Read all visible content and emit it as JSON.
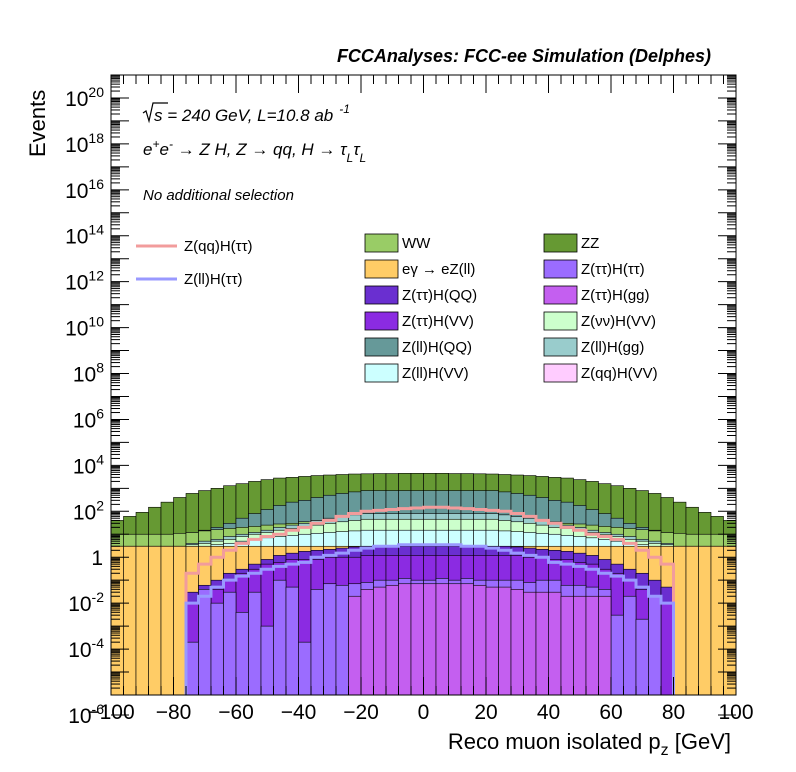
{
  "header": {
    "title": "FCCAnalyses: FCC-ee Simulation (Delphes)"
  },
  "labels": {
    "energy_sqrt": "s",
    "energy_rest": " = 240 GeV, L=10.8 ab",
    "energy_exp": "-1",
    "process_a": "e",
    "process_a_sup": "+",
    "process_b": "e",
    "process_b_sup": "-",
    "process_c": " → Z H, Z  → qq, H  → τ",
    "process_c_sub": "L",
    "process_d": "τ",
    "process_d_sub": "L",
    "selection": "No additional selection"
  },
  "chart_data": {
    "type": "area",
    "title": "FCCAnalyses: FCC-ee Simulation (Delphes)",
    "xlabel_main": "Reco muon isolated p",
    "xlabel_sub": "z",
    "xlabel_unit": " [GeV]",
    "ylabel": "Events",
    "xlim": [
      -100,
      100
    ],
    "ylim": [
      1e-06,
      1e+21
    ],
    "log_y": true,
    "grid": false,
    "legend_position": "top-right",
    "x_ticks": [
      "−100",
      "−80",
      "−60",
      "−40",
      "−20",
      "0",
      "20",
      "40",
      "60",
      "80",
      "100"
    ],
    "y_ticks": [
      {
        "base": "10",
        "exp": "-6",
        "value": 1e-06
      },
      {
        "base": "10",
        "exp": "-4",
        "value": 0.0001
      },
      {
        "base": "10",
        "exp": "-2",
        "value": 0.01
      },
      {
        "base": "1",
        "exp": "",
        "value": 1
      },
      {
        "base": "10",
        "exp": "2",
        "value": 100.0
      },
      {
        "base": "10",
        "exp": "4",
        "value": 10000.0
      },
      {
        "base": "10",
        "exp": "6",
        "value": 1000000.0
      },
      {
        "base": "10",
        "exp": "8",
        "value": 100000000.0
      },
      {
        "base": "10",
        "exp": "10",
        "value": 10000000000.0
      },
      {
        "base": "10",
        "exp": "12",
        "value": 1000000000000.0
      },
      {
        "base": "10",
        "exp": "14",
        "value": 100000000000000.0
      },
      {
        "base": "10",
        "exp": "16",
        "value": 1e+16
      },
      {
        "base": "10",
        "exp": "18",
        "value": 1e+18
      },
      {
        "base": "10",
        "exp": "20",
        "value": 1e+20
      }
    ],
    "bin_edges": [
      -100,
      -96,
      -92,
      -88,
      -84,
      -80,
      -76,
      -72,
      -68,
      -64,
      -60,
      -56,
      -52,
      -48,
      -44,
      -40,
      -36,
      -32,
      -28,
      -24,
      -20,
      -16,
      -12,
      -8,
      -4,
      0,
      4,
      8,
      12,
      16,
      20,
      24,
      28,
      32,
      36,
      40,
      44,
      48,
      52,
      56,
      60,
      64,
      68,
      72,
      76,
      80,
      84,
      88,
      92,
      96,
      100
    ],
    "stack_layers": [
      {
        "name": "Z(ττ)H(gg)",
        "color": "#c45ff0",
        "tops": [
          0,
          0,
          0,
          0,
          0,
          0,
          0,
          0,
          0,
          0,
          0,
          0,
          0,
          0,
          0,
          0,
          0,
          0,
          0,
          0.02,
          0.04,
          0.05,
          0.06,
          0.07,
          0.07,
          0.07,
          0.07,
          0.07,
          0.07,
          0.06,
          0.05,
          0.05,
          0.04,
          0.03,
          0.03,
          0.03,
          0.02,
          0.02,
          0.02,
          0.02,
          0,
          0,
          0,
          0,
          0,
          0,
          0,
          0,
          0,
          0
        ]
      },
      {
        "name": "Z(ττ)H(ττ)",
        "color": "#9b6cff",
        "tops": [
          0,
          0,
          0,
          0,
          0,
          0,
          0.0002,
          0.04,
          0.01,
          0.03,
          0.004,
          0.03,
          0.001,
          0.1,
          0.05,
          0.0002,
          0.04,
          0.07,
          0.06,
          0.07,
          0.08,
          0.1,
          0.1,
          0.12,
          0.1,
          0.1,
          0.12,
          0.1,
          0.12,
          0.1,
          0.1,
          0.1,
          0.1,
          0.08,
          0.1,
          0.1,
          0.06,
          0.06,
          0.05,
          0.04,
          0.003,
          0.02,
          0.002,
          0.02,
          0,
          0,
          0,
          0,
          0,
          0
        ]
      },
      {
        "name": "Z(ττ)H(VV)",
        "color": "#8b2be2",
        "tops": [
          0,
          0,
          0,
          0,
          0,
          0,
          0.01,
          0.02,
          0.04,
          0.1,
          0.2,
          0.3,
          0.5,
          0.6,
          0.8,
          0.8,
          0.8,
          1,
          1,
          1,
          1.2,
          1.2,
          1.2,
          1.2,
          1.2,
          1.2,
          1.2,
          1.2,
          1.2,
          1.2,
          1.2,
          1.2,
          1.2,
          1,
          1,
          0.8,
          0.8,
          0.6,
          0.5,
          0.3,
          0.2,
          0.1,
          0.04,
          0.02,
          0.01,
          0,
          0,
          0,
          0,
          0
        ]
      },
      {
        "name": "Z(ττ)H(QQ)",
        "color": "#6a2fd0",
        "tops": [
          0,
          0,
          0,
          0,
          0,
          0,
          0.03,
          0.06,
          0.1,
          0.2,
          0.3,
          0.5,
          0.8,
          1.2,
          1.5,
          1.8,
          2,
          2.2,
          2.5,
          2.8,
          3,
          3,
          3,
          3,
          3,
          3,
          3,
          3,
          3,
          3,
          3,
          3,
          2.8,
          2.5,
          2.2,
          2,
          1.8,
          1.5,
          1.2,
          0.8,
          0.5,
          0.3,
          0.2,
          0.1,
          0.05,
          0,
          0,
          0,
          0,
          0
        ]
      },
      {
        "name": "eγ → eZ(ll)",
        "color": "#ffcc66",
        "tops": [
          3,
          3,
          3,
          3,
          3,
          3,
          3,
          3,
          3,
          3,
          3,
          3,
          3,
          3,
          3,
          3,
          3,
          3,
          3,
          3,
          3,
          3,
          3,
          3,
          3,
          3,
          3,
          3,
          3,
          3,
          3,
          3,
          3,
          3,
          3,
          3,
          3,
          3,
          3,
          3,
          3,
          3,
          3,
          3,
          3,
          3,
          3,
          3,
          3,
          3
        ]
      },
      {
        "name": "Z(ll)H(VV)",
        "color": "#ccffff",
        "tops": [
          3,
          3,
          3,
          3,
          3,
          3,
          3,
          3,
          3.5,
          4,
          5,
          6,
          7,
          8,
          9,
          10,
          11,
          12,
          13,
          14,
          15,
          15,
          15,
          15,
          15,
          15,
          15,
          15,
          15,
          15,
          15,
          14,
          13,
          12,
          11,
          10,
          9,
          8,
          7,
          6,
          5,
          4,
          3.5,
          3,
          3,
          3,
          3,
          3,
          3,
          3
        ]
      },
      {
        "name": "Z(νν)H(VV)",
        "color": "#ccffcc",
        "tops": [
          3,
          3,
          3,
          3,
          3,
          3,
          3.5,
          4,
          5,
          6,
          8,
          10,
          12,
          15,
          18,
          20,
          25,
          30,
          35,
          40,
          45,
          45,
          45,
          45,
          45,
          45,
          45,
          45,
          45,
          45,
          45,
          40,
          35,
          30,
          25,
          20,
          18,
          15,
          12,
          10,
          8,
          6,
          5,
          4,
          3.5,
          3,
          3,
          3,
          3,
          3
        ]
      },
      {
        "name": "Z(ll)H(gg)",
        "color": "#99cccc",
        "tops": [
          3,
          3,
          3,
          3,
          3,
          3,
          4,
          5,
          6,
          8,
          10,
          12,
          15,
          20,
          25,
          30,
          40,
          50,
          60,
          70,
          80,
          80,
          80,
          80,
          80,
          80,
          80,
          80,
          80,
          80,
          80,
          70,
          60,
          50,
          40,
          30,
          25,
          20,
          15,
          12,
          10,
          8,
          6,
          5,
          4,
          3,
          3,
          3,
          3,
          3
        ]
      },
      {
        "name": "WW",
        "color": "#99cc66",
        "tops": [
          10,
          10,
          10,
          10,
          10,
          11,
          12,
          14,
          16,
          18,
          20,
          22,
          25,
          28,
          30,
          35,
          40,
          45,
          50,
          55,
          60,
          60,
          60,
          60,
          60,
          60,
          60,
          60,
          60,
          60,
          60,
          55,
          50,
          45,
          40,
          35,
          30,
          28,
          25,
          22,
          20,
          18,
          16,
          14,
          12,
          11,
          10,
          10,
          10,
          10
        ]
      },
      {
        "name": "Z(ll)H(QQ)",
        "color": "#669999",
        "tops": [
          10,
          10,
          10,
          10,
          10,
          11,
          12,
          15,
          20,
          30,
          50,
          80,
          120,
          180,
          250,
          300,
          400,
          500,
          600,
          700,
          800,
          800,
          800,
          800,
          800,
          800,
          800,
          800,
          800,
          800,
          800,
          700,
          600,
          500,
          400,
          300,
          250,
          180,
          120,
          80,
          50,
          30,
          20,
          15,
          12,
          11,
          10,
          10,
          10,
          10
        ]
      },
      {
        "name": "ZZ",
        "color": "#669933",
        "tops": [
          40,
          60,
          90,
          150,
          250,
          400,
          600,
          800,
          1000,
          1300,
          1600,
          2000,
          2400,
          2800,
          3000,
          3300,
          3600,
          3800,
          4000,
          4200,
          4300,
          4400,
          4400,
          4500,
          4500,
          4500,
          4500,
          4400,
          4400,
          4300,
          4200,
          4000,
          3800,
          3600,
          3300,
          3000,
          2800,
          2400,
          2000,
          1600,
          1300,
          1000,
          800,
          600,
          400,
          250,
          150,
          90,
          60,
          40
        ]
      }
    ],
    "overlay_lines": [
      {
        "name": "Z(qq)H(ττ)",
        "color": "#f29c9c",
        "values": [
          0,
          0,
          0,
          0,
          0,
          0,
          0.2,
          0.5,
          1,
          2,
          4,
          6,
          8,
          10,
          15,
          20,
          30,
          40,
          60,
          80,
          100,
          110,
          120,
          130,
          140,
          150,
          150,
          140,
          130,
          120,
          110,
          100,
          80,
          60,
          40,
          30,
          20,
          15,
          10,
          8,
          6,
          4,
          2,
          1,
          0.5,
          0,
          0,
          0,
          0,
          0
        ]
      },
      {
        "name": "Z(ll)H(ττ)",
        "color": "#9999ff",
        "values": [
          0,
          0,
          0,
          0,
          0,
          0,
          0.01,
          0.02,
          0.05,
          0.1,
          0.15,
          0.2,
          0.3,
          0.4,
          0.5,
          0.6,
          1,
          1.2,
          1.5,
          2,
          2.5,
          3,
          3,
          3.5,
          3.5,
          3.5,
          3.5,
          3.5,
          3,
          3,
          2.5,
          2,
          1.5,
          1.2,
          1,
          0.6,
          0.5,
          0.4,
          0.3,
          0.2,
          0.15,
          0.1,
          0.05,
          0.02,
          0.01,
          0,
          0,
          0,
          0,
          0
        ]
      }
    ],
    "legend": {
      "lines": [
        {
          "label": "Z(qq)H(ττ)",
          "color": "#f29c9c"
        },
        {
          "label": "Z(ll)H(ττ)",
          "color": "#9999ff"
        }
      ],
      "col1": [
        {
          "label": "WW",
          "color": "#99cc66"
        },
        {
          "label": "eγ → eZ(ll)",
          "color": "#ffcc66"
        },
        {
          "label": "Z(ττ)H(QQ)",
          "color": "#6a2fd0"
        },
        {
          "label": "Z(ττ)H(VV)",
          "color": "#8b2be2"
        },
        {
          "label": "Z(ll)H(QQ)",
          "color": "#669999"
        },
        {
          "label": "Z(ll)H(VV)",
          "color": "#ccffff"
        }
      ],
      "col2": [
        {
          "label": "ZZ",
          "color": "#669933"
        },
        {
          "label": "Z(ττ)H(ττ)",
          "color": "#9b6cff"
        },
        {
          "label": "Z(ττ)H(gg)",
          "color": "#c45ff0"
        },
        {
          "label": "Z(νν)H(VV)",
          "color": "#ccffcc"
        },
        {
          "label": "Z(ll)H(gg)",
          "color": "#99cccc"
        },
        {
          "label": "Z(qq)H(VV)",
          "color": "#ffccff"
        }
      ]
    }
  }
}
